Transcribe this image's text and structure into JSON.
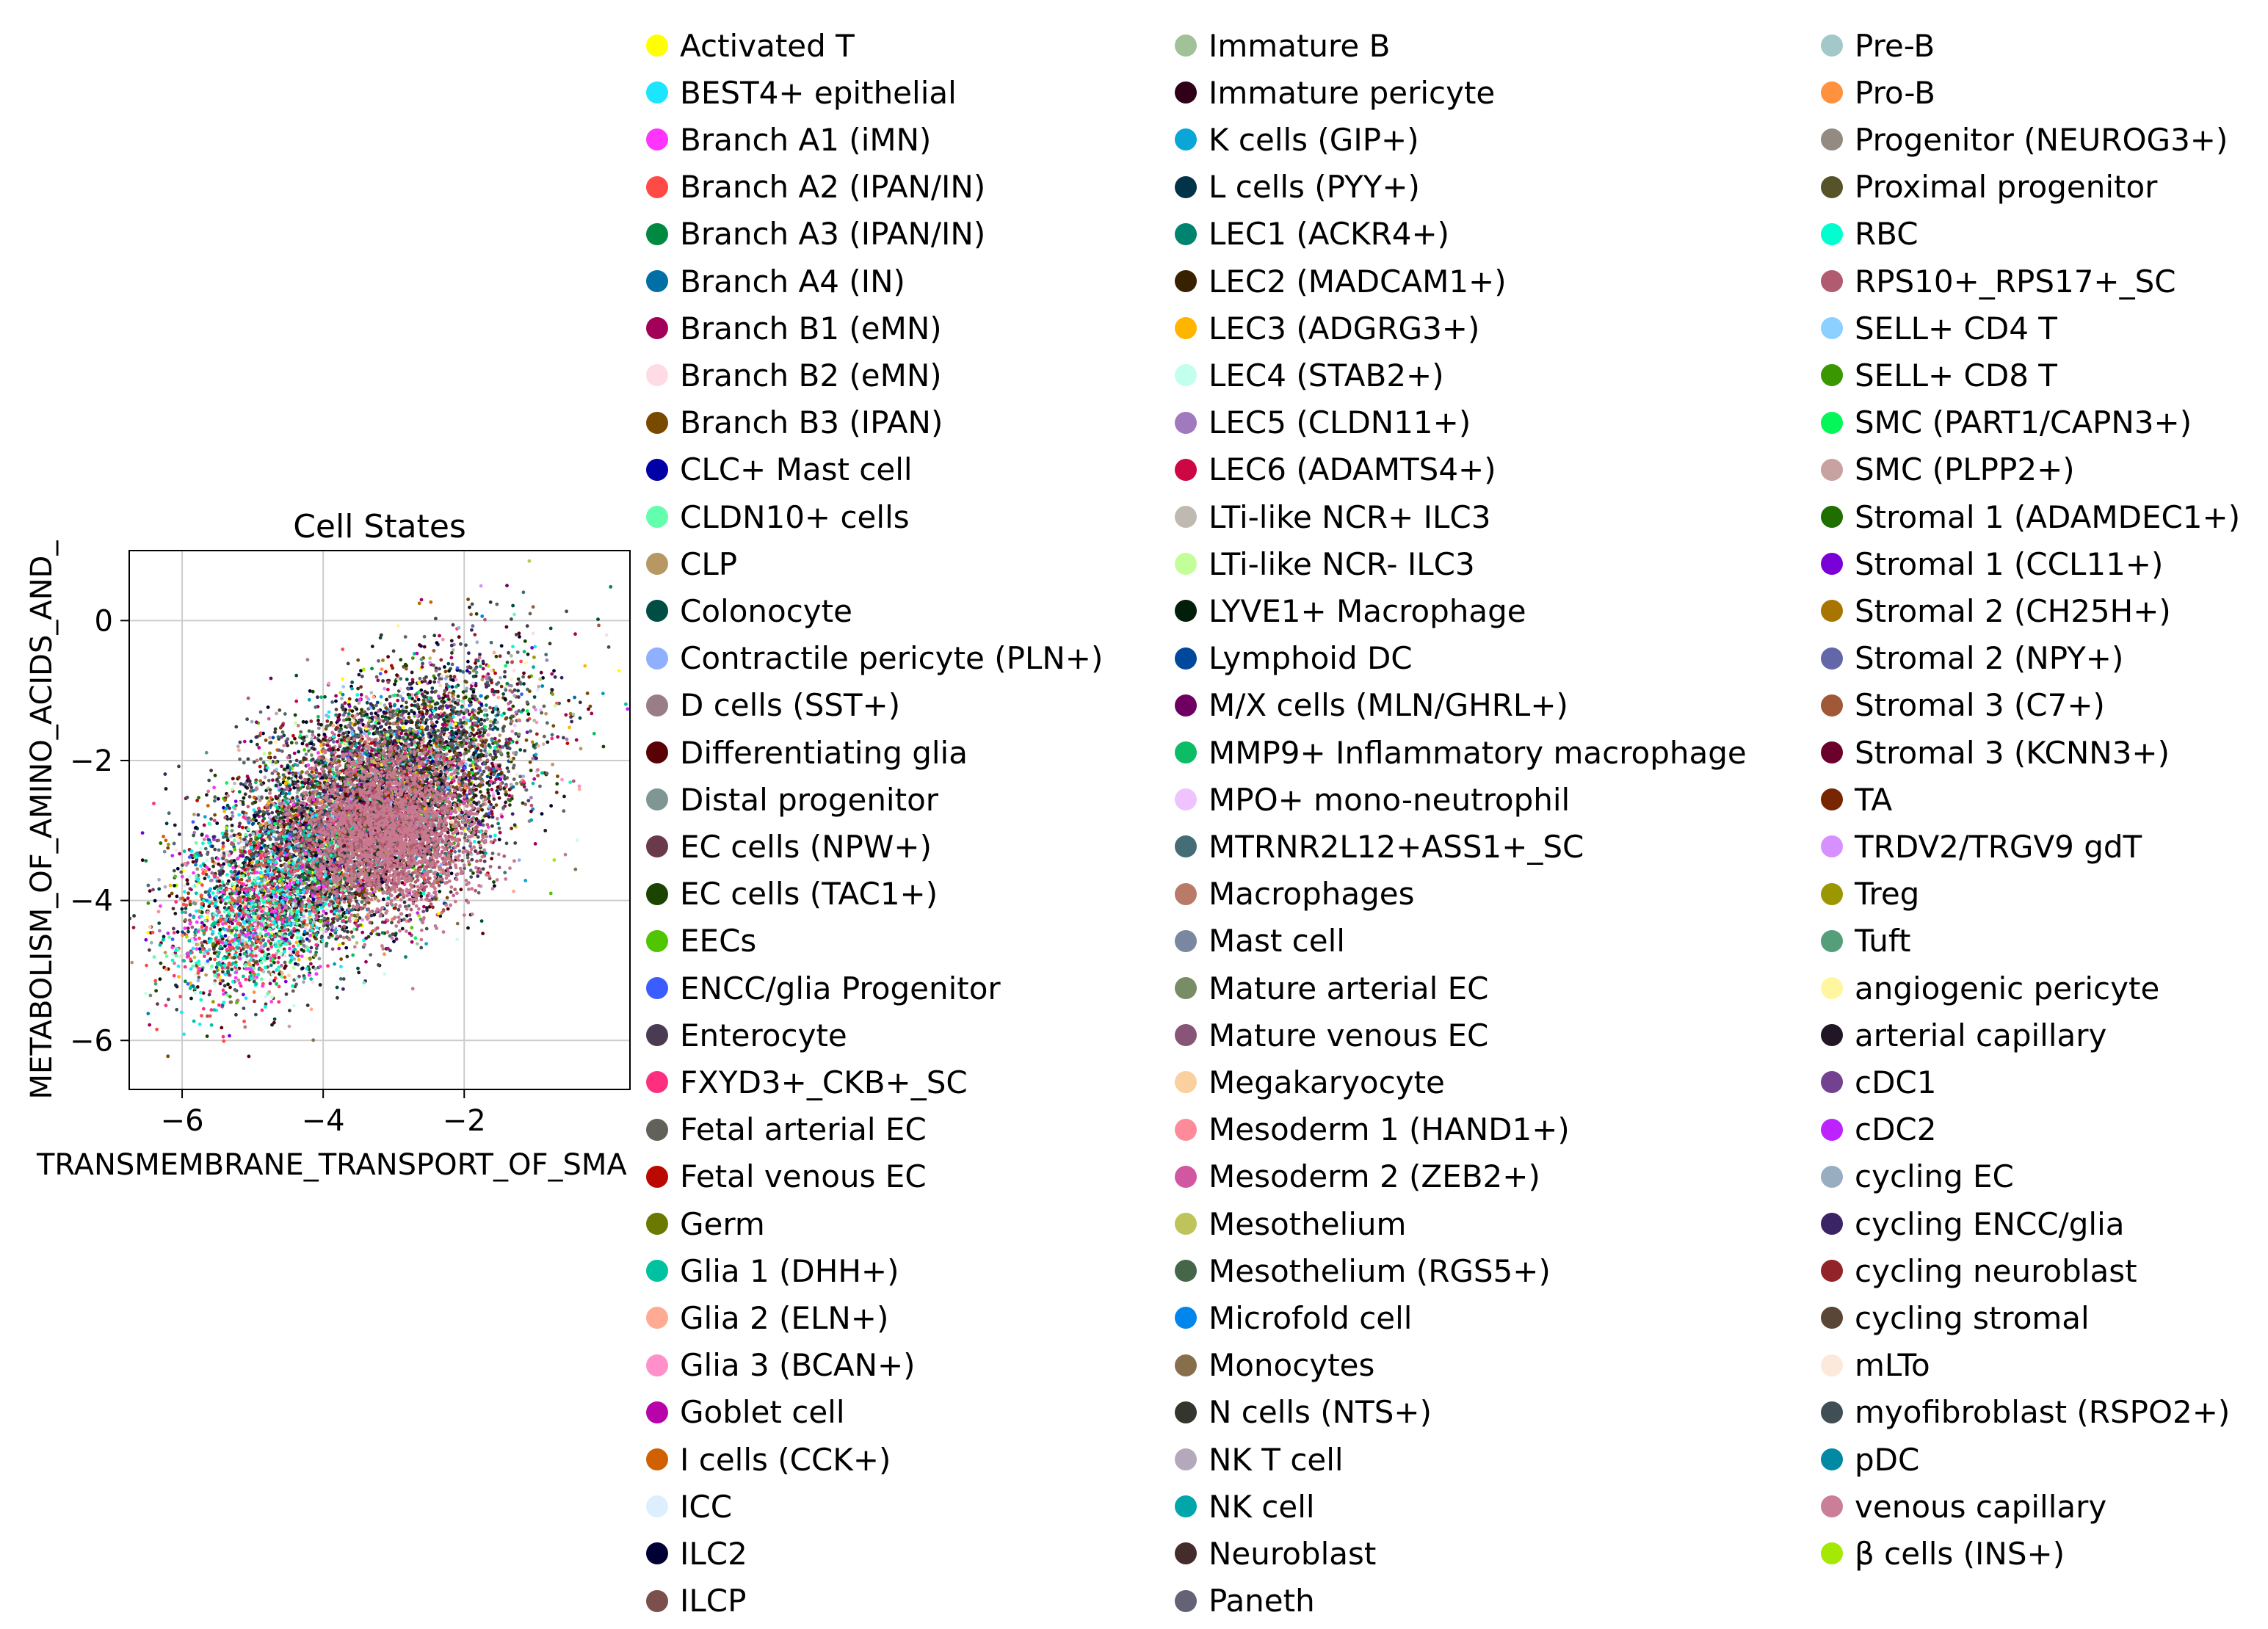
{
  "chart_data": {
    "type": "scatter",
    "title": "Cell States",
    "xlabel": "TRANSMEMBRANE_TRANSPORT_OF_SMA",
    "ylabel": "METABOLISM_OF_AMINO_ACIDS_AND_",
    "xlim": [
      -6.75,
      0.35
    ],
    "ylim": [
      -6.7,
      1.0
    ],
    "xticks": [
      -6,
      -4,
      -2
    ],
    "xtick_labels": [
      "−6",
      "−4",
      "−2"
    ],
    "yticks": [
      0,
      -2,
      -4,
      -6
    ],
    "ytick_labels": [
      "0",
      "−2",
      "−4",
      "−6"
    ],
    "grid": true,
    "legend_placement": "right",
    "point_cloud": {
      "main_center": [
        -3.4,
        -2.7
      ],
      "main_spread": [
        1.1,
        0.95
      ],
      "main_correlation": 0.55,
      "tail_center": [
        -4.9,
        -4.2
      ],
      "tail_spread": [
        0.6,
        0.55
      ],
      "core_center": [
        -3.1,
        -3.0
      ],
      "core_spread": [
        0.6,
        0.55
      ],
      "core_color": "#c7798f"
    },
    "series": [
      {
        "name": "Activated T",
        "color": "#ffff00"
      },
      {
        "name": "BEST4+ epithelial",
        "color": "#1ce6ff"
      },
      {
        "name": "Branch A1 (iMN)",
        "color": "#ff34ff"
      },
      {
        "name": "Branch A2 (IPAN/IN)",
        "color": "#ff4a46"
      },
      {
        "name": "Branch A3 (IPAN/IN)",
        "color": "#008941"
      },
      {
        "name": "Branch A4 (IN)",
        "color": "#006fa6"
      },
      {
        "name": "Branch B1 (eMN)",
        "color": "#a30059"
      },
      {
        "name": "Branch B2 (eMN)",
        "color": "#ffdbe5"
      },
      {
        "name": "Branch B3 (IPAN)",
        "color": "#7a4900"
      },
      {
        "name": "CLC+ Mast cell",
        "color": "#0000a6"
      },
      {
        "name": "CLDN10+ cells",
        "color": "#63ffac"
      },
      {
        "name": "CLP",
        "color": "#b79762"
      },
      {
        "name": "Colonocyte",
        "color": "#004d43"
      },
      {
        "name": "Contractile pericyte (PLN+)",
        "color": "#8fb0ff"
      },
      {
        "name": "D cells (SST+)",
        "color": "#997d87"
      },
      {
        "name": "Differentiating glia",
        "color": "#5a0007"
      },
      {
        "name": "Distal progenitor",
        "color": "#809693"
      },
      {
        "name": "EC cells (NPW+)",
        "color": "#6a3a4c"
      },
      {
        "name": "EC cells (TAC1+)",
        "color": "#1b4400"
      },
      {
        "name": "EECs",
        "color": "#4fc601"
      },
      {
        "name": "ENCC/glia Progenitor",
        "color": "#3b5dff"
      },
      {
        "name": "Enterocyte",
        "color": "#4a3b53"
      },
      {
        "name": "FXYD3+_CKB+_SC",
        "color": "#ff2f80"
      },
      {
        "name": "Fetal arterial EC",
        "color": "#61615a"
      },
      {
        "name": "Fetal venous EC",
        "color": "#ba0900"
      },
      {
        "name": "Germ",
        "color": "#6b7900"
      },
      {
        "name": "Glia 1 (DHH+)",
        "color": "#00c2a0"
      },
      {
        "name": "Glia 2 (ELN+)",
        "color": "#ffaa92"
      },
      {
        "name": "Glia 3 (BCAN+)",
        "color": "#ff90c9"
      },
      {
        "name": "Goblet cell",
        "color": "#b903aa"
      },
      {
        "name": "I cells (CCK+)",
        "color": "#d16100"
      },
      {
        "name": "ICC",
        "color": "#ddefff"
      },
      {
        "name": "ILC2",
        "color": "#000035"
      },
      {
        "name": "ILCP",
        "color": "#7b4f4b"
      },
      {
        "name": "Immature B",
        "color": "#a1c299"
      },
      {
        "name": "Immature pericyte",
        "color": "#300018"
      },
      {
        "name": "K cells (GIP+)",
        "color": "#0aa6d8"
      },
      {
        "name": "L cells (PYY+)",
        "color": "#013349"
      },
      {
        "name": "LEC1 (ACKR4+)",
        "color": "#00846f"
      },
      {
        "name": "LEC2 (MADCAM1+)",
        "color": "#372101"
      },
      {
        "name": "LEC3 (ADGRG3+)",
        "color": "#ffb500"
      },
      {
        "name": "LEC4 (STAB2+)",
        "color": "#c2ffed"
      },
      {
        "name": "LEC5 (CLDN11+)",
        "color": "#a079bf"
      },
      {
        "name": "LEC6 (ADAMTS4+)",
        "color": "#cc0744"
      },
      {
        "name": "LTi-like NCR+ ILC3",
        "color": "#c0b9b2"
      },
      {
        "name": "LTi-like NCR- ILC3",
        "color": "#c2ff99"
      },
      {
        "name": "LYVE1+ Macrophage",
        "color": "#001e09"
      },
      {
        "name": "Lymphoid DC",
        "color": "#00489c"
      },
      {
        "name": "M/X cells (MLN/GHRL+)",
        "color": "#6f0062"
      },
      {
        "name": "MMP9+ Inflammatory macrophage",
        "color": "#0cbd66"
      },
      {
        "name": "MPO+ mono-neutrophil",
        "color": "#eec3ff"
      },
      {
        "name": "MTRNR2L12+ASS1+_SC",
        "color": "#456d75"
      },
      {
        "name": "Macrophages",
        "color": "#b77b68"
      },
      {
        "name": "Mast cell",
        "color": "#7a87a1"
      },
      {
        "name": "Mature arterial EC",
        "color": "#788d66"
      },
      {
        "name": "Mature venous EC",
        "color": "#885578"
      },
      {
        "name": "Megakaryocyte",
        "color": "#fad09f"
      },
      {
        "name": "Mesoderm 1 (HAND1+)",
        "color": "#ff8a9a"
      },
      {
        "name": "Mesoderm 2 (ZEB2+)",
        "color": "#d157a0"
      },
      {
        "name": "Mesothelium",
        "color": "#bec459"
      },
      {
        "name": "Mesothelium (RGS5+)",
        "color": "#456648"
      },
      {
        "name": "Microfold cell",
        "color": "#0086ed"
      },
      {
        "name": "Monocytes",
        "color": "#886f4c"
      },
      {
        "name": "N cells (NTS+)",
        "color": "#34362d"
      },
      {
        "name": "NK T cell",
        "color": "#b4a8bd"
      },
      {
        "name": "NK cell",
        "color": "#00a6aa"
      },
      {
        "name": "Neuroblast",
        "color": "#452c2c"
      },
      {
        "name": "Paneth",
        "color": "#636375"
      },
      {
        "name": "Pre-B",
        "color": "#a3c8c9"
      },
      {
        "name": "Pro-B",
        "color": "#ff913f"
      },
      {
        "name": "Progenitor (NEUROG3+)",
        "color": "#938a81"
      },
      {
        "name": "Proximal progenitor",
        "color": "#575329"
      },
      {
        "name": "RBC",
        "color": "#00fecf"
      },
      {
        "name": "RPS10+_RPS17+_SC",
        "color": "#b05b6f"
      },
      {
        "name": "SELL+ CD4 T",
        "color": "#8cd0ff"
      },
      {
        "name": "SELL+ CD8 T",
        "color": "#3b9700"
      },
      {
        "name": "SMC (PART1/CAPN3+)",
        "color": "#04f757"
      },
      {
        "name": "SMC (PLPP2+)",
        "color": "#c8a1a1"
      },
      {
        "name": "Stromal 1 (ADAMDEC1+)",
        "color": "#1e6e00"
      },
      {
        "name": "Stromal 1 (CCL11+)",
        "color": "#7900d7"
      },
      {
        "name": "Stromal 2 (CH25H+)",
        "color": "#a77500"
      },
      {
        "name": "Stromal 2 (NPY+)",
        "color": "#6367a9"
      },
      {
        "name": "Stromal 3 (C7+)",
        "color": "#a05837"
      },
      {
        "name": "Stromal 3 (KCNN3+)",
        "color": "#6b002c"
      },
      {
        "name": "TA",
        "color": "#772600"
      },
      {
        "name": "TRDV2/TRGV9 gdT",
        "color": "#d790ff"
      },
      {
        "name": "Treg",
        "color": "#9b9700"
      },
      {
        "name": "Tuft",
        "color": "#549e79"
      },
      {
        "name": "angiogenic pericyte",
        "color": "#fff69f"
      },
      {
        "name": "arterial capillary",
        "color": "#201625"
      },
      {
        "name": "cDC1",
        "color": "#72418f"
      },
      {
        "name": "cDC2",
        "color": "#bc23ff"
      },
      {
        "name": "cycling EC",
        "color": "#99adc0"
      },
      {
        "name": "cycling ENCC/glia",
        "color": "#3a2465"
      },
      {
        "name": "cycling neuroblast",
        "color": "#922329"
      },
      {
        "name": "cycling stromal",
        "color": "#5b4534"
      },
      {
        "name": "mLTo",
        "color": "#fde8dc"
      },
      {
        "name": "myofibroblast (RSPO2+)",
        "color": "#404e55"
      },
      {
        "name": "pDC",
        "color": "#0089a3"
      },
      {
        "name": "venous capillary",
        "color": "#cb7e98"
      },
      {
        "name": "β cells (INS+)",
        "color": "#a4e804"
      }
    ]
  }
}
